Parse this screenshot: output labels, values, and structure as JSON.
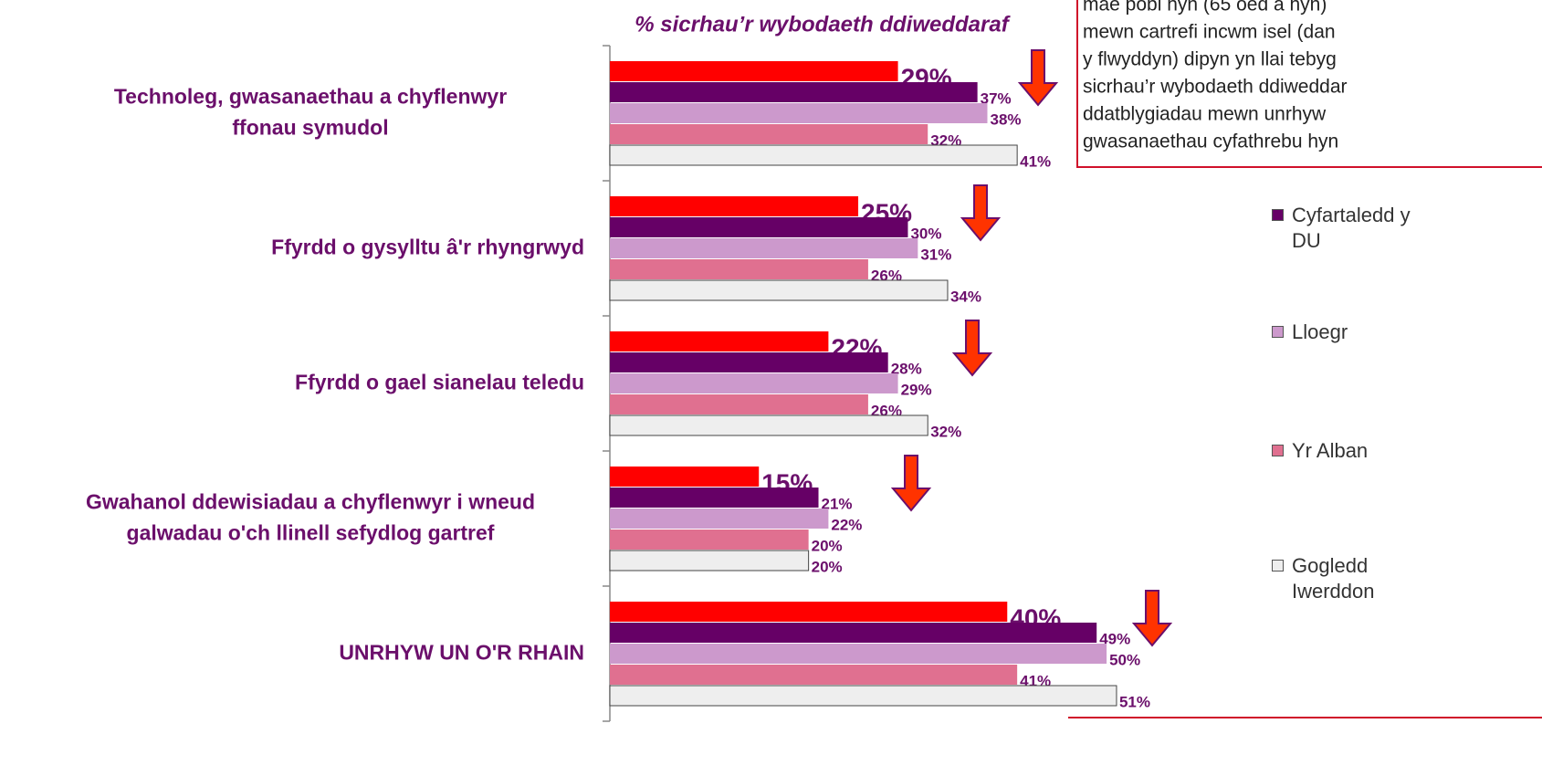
{
  "chart_data": {
    "type": "hbar",
    "axis_title": "% sicrhau’r wybodaeth ddiweddaraf",
    "categories": [
      [
        "Technoleg, gwasanaethau a chyflenwyr",
        "ffonau symudol"
      ],
      [
        "Ffyrdd o gysylltu â'r rhyngrwyd"
      ],
      [
        "Ffyrdd o gael sianelau teledu"
      ],
      [
        "Gwahanol ddewisiadau a chyflenwyr i wneud",
        "galwadau o'ch llinell sefydlog gartref"
      ],
      [
        "UNRHYW UN O'R RHAIN"
      ]
    ],
    "series": [
      {
        "color": "#ff0000",
        "values": [
          29,
          25,
          22,
          15,
          40
        ],
        "value_labels": [
          "29%",
          "25%",
          "22%",
          "15%",
          "40%"
        ]
      },
      {
        "name": "Cyfartaledd y DU",
        "color": "#660066",
        "values": [
          37,
          30,
          28,
          21,
          49
        ],
        "value_labels": [
          "37%",
          "30%",
          "28%",
          "21%",
          "49%"
        ]
      },
      {
        "name": "Lloegr",
        "color": "#cc99cc",
        "values": [
          38,
          31,
          29,
          22,
          50
        ],
        "value_labels": [
          "38%",
          "31%",
          "29%",
          "22%",
          "50%"
        ]
      },
      {
        "name": "Yr Alban",
        "color": "#e07090",
        "values": [
          32,
          26,
          26,
          20,
          41
        ],
        "value_labels": [
          "32%",
          "26%",
          "26%",
          "20%",
          "41%"
        ]
      },
      {
        "name": "Gogledd Iwerddon",
        "color": "#eeeeee",
        "values": [
          41,
          34,
          32,
          20,
          51
        ],
        "value_labels": [
          "41%",
          "34%",
          "32%",
          "20%",
          "51%"
        ]
      }
    ],
    "xlim": [
      0,
      93
    ],
    "annotation": [
      "mae pobl hŷn (65 oed a hŷn)",
      "mewn cartrefi incwm isel (dan",
      "y flwyddyn) dipyn yn llai tebyg",
      "sicrhau’r wybodaeth ddiweddar",
      "ddatblygiadau mewn unrhyw",
      "gwasanaethau cyfathrebu hyn"
    ]
  }
}
